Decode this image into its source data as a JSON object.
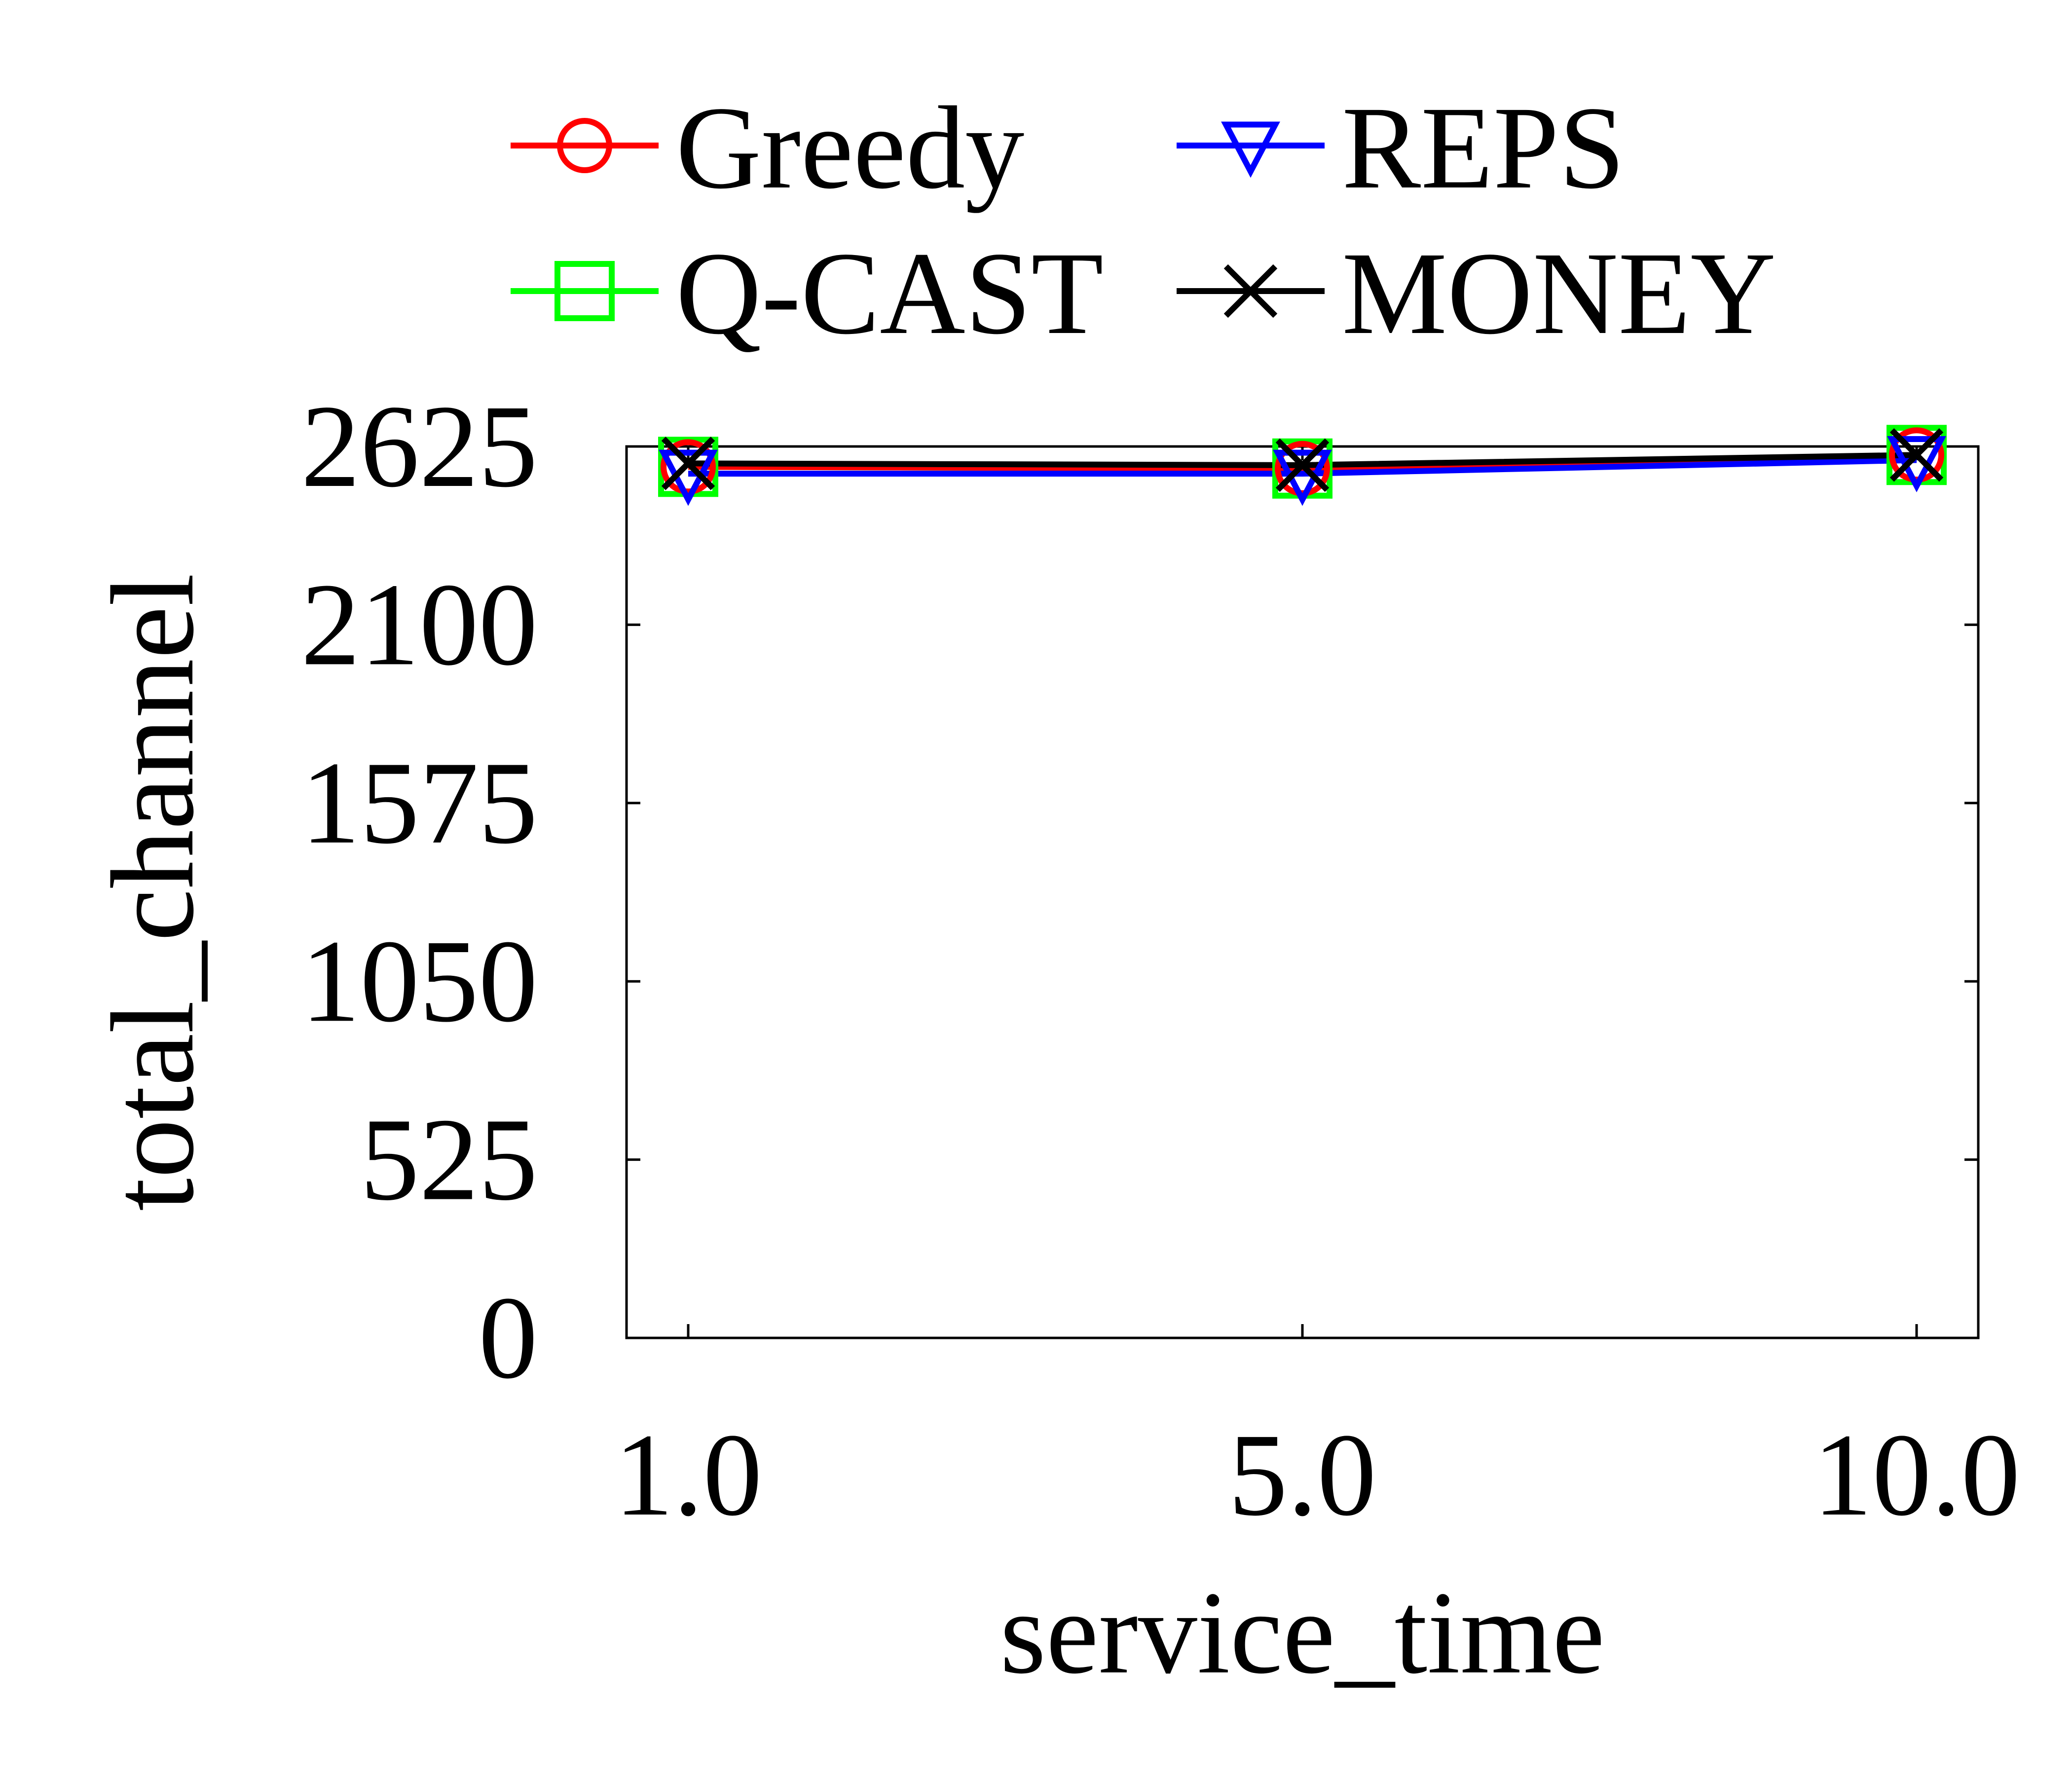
{
  "chart_data": {
    "type": "line",
    "xlabel": "service_time",
    "ylabel": "total_channel",
    "x": [
      1.0,
      5.0,
      10.0
    ],
    "x_tick_labels": [
      "1.0",
      "5.0",
      "10.0"
    ],
    "y_ticks": [
      0,
      525,
      1050,
      1575,
      2100,
      2625
    ],
    "y_tick_labels": [
      "0",
      "525",
      "1050",
      "1575",
      "2100",
      "2625"
    ],
    "ylim": [
      0,
      2625
    ],
    "grid": false,
    "legend_position": "top",
    "series": [
      {
        "name": "Greedy",
        "values": [
          2565,
          2560,
          2600
        ],
        "color": "#ff0000",
        "marker": "circle"
      },
      {
        "name": "REPS",
        "values": [
          2545,
          2545,
          2585
        ],
        "color": "#0000ff",
        "marker": "triangle-down"
      },
      {
        "name": "Q-CAST",
        "values": [
          2565,
          2560,
          2600
        ],
        "color": "#00ff00",
        "marker": "square"
      },
      {
        "name": "MONEY",
        "values": [
          2575,
          2570,
          2600
        ],
        "color": "#000000",
        "marker": "x"
      }
    ]
  }
}
